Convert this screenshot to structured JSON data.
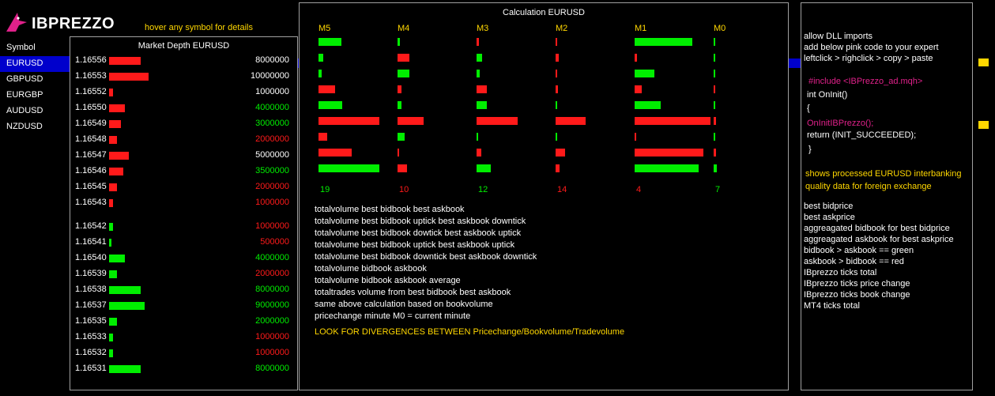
{
  "brand": {
    "name": "IBPREZZO",
    "accent": "#e0218a"
  },
  "hover_hint": "hover any symbol for details",
  "symbols": {
    "header": "Symbol",
    "items": [
      "EURUSD",
      "GBPUSD",
      "EURGBP",
      "AUDUSD",
      "NZDUSD"
    ],
    "selected": "EURUSD"
  },
  "colors": {
    "green": "#00ee00",
    "red": "#ff1a1a",
    "yellow": "#ffd700",
    "pink": "#e0218a",
    "selection": "#0000cc"
  },
  "market_depth": {
    "title": "Market Depth EURUSD",
    "rows": [
      {
        "price": "1.16556",
        "volume": "8000000",
        "color": "white",
        "bar": "red"
      },
      {
        "price": "1.16553",
        "volume": "10000000",
        "color": "white",
        "bar": "red"
      },
      {
        "price": "1.16552",
        "volume": "1000000",
        "color": "white",
        "bar": "red"
      },
      {
        "price": "1.16550",
        "volume": "4000000",
        "color": "green",
        "bar": "red"
      },
      {
        "price": "1.16549",
        "volume": "3000000",
        "color": "green",
        "bar": "red"
      },
      {
        "price": "1.16548",
        "volume": "2000000",
        "color": "red",
        "bar": "red"
      },
      {
        "price": "1.16547",
        "volume": "5000000",
        "color": "white",
        "bar": "red"
      },
      {
        "price": "1.16546",
        "volume": "3500000",
        "color": "green",
        "bar": "red"
      },
      {
        "price": "1.16545",
        "volume": "2000000",
        "color": "red",
        "bar": "red"
      },
      {
        "price": "1.16543",
        "volume": "1000000",
        "color": "red",
        "bar": "red"
      },
      {
        "price": "1.16542",
        "volume": "1000000",
        "color": "red",
        "bar": "green"
      },
      {
        "price": "1.16541",
        "volume": "500000",
        "color": "red",
        "bar": "green"
      },
      {
        "price": "1.16540",
        "volume": "4000000",
        "color": "green",
        "bar": "green"
      },
      {
        "price": "1.16539",
        "volume": "2000000",
        "color": "red",
        "bar": "green"
      },
      {
        "price": "1.16538",
        "volume": "8000000",
        "color": "green",
        "bar": "green"
      },
      {
        "price": "1.16537",
        "volume": "9000000",
        "color": "green",
        "bar": "green"
      },
      {
        "price": "1.16535",
        "volume": "2000000",
        "color": "green",
        "bar": "green"
      },
      {
        "price": "1.16533",
        "volume": "1000000",
        "color": "red",
        "bar": "green"
      },
      {
        "price": "1.16532",
        "volume": "1000000",
        "color": "red",
        "bar": "green"
      },
      {
        "price": "1.16531",
        "volume": "8000000",
        "color": "green",
        "bar": "green"
      }
    ]
  },
  "calculation": {
    "title": "Calculation EURUSD",
    "columns": [
      {
        "label": "M5",
        "count": "19",
        "count_color": "green",
        "bars": [
          {
            "c": "green",
            "v": 0.38
          },
          {
            "c": "green",
            "v": 0.08
          },
          {
            "c": "green",
            "v": 0.05
          },
          {
            "c": "red",
            "v": 0.27
          },
          {
            "c": "green",
            "v": 0.39
          },
          {
            "c": "red",
            "v": 1.0
          },
          {
            "c": "red",
            "v": 0.14
          },
          {
            "c": "red",
            "v": 0.55
          },
          {
            "c": "green",
            "v": 1.0
          }
        ]
      },
      {
        "label": "M4",
        "count": "10",
        "count_color": "red",
        "bars": [
          {
            "c": "green",
            "v": 0.04
          },
          {
            "c": "red",
            "v": 0.19
          },
          {
            "c": "green",
            "v": 0.2
          },
          {
            "c": "red",
            "v": 0.06
          },
          {
            "c": "green",
            "v": 0.07
          },
          {
            "c": "red",
            "v": 0.43
          },
          {
            "c": "green",
            "v": 0.12
          },
          {
            "c": "red",
            "v": 0.03
          },
          {
            "c": "red",
            "v": 0.16
          }
        ]
      },
      {
        "label": "M3",
        "count": "12",
        "count_color": "green",
        "bars": [
          {
            "c": "red",
            "v": 0.04
          },
          {
            "c": "green",
            "v": 0.09
          },
          {
            "c": "green",
            "v": 0.05
          },
          {
            "c": "red",
            "v": 0.17
          },
          {
            "c": "green",
            "v": 0.17
          },
          {
            "c": "red",
            "v": 0.67
          },
          {
            "c": "green",
            "v": 0.02
          },
          {
            "c": "red",
            "v": 0.08
          },
          {
            "c": "green",
            "v": 0.23
          }
        ]
      },
      {
        "label": "M2",
        "count": "14",
        "count_color": "red",
        "bars": [
          {
            "c": "red",
            "v": 0.03
          },
          {
            "c": "red",
            "v": 0.05
          },
          {
            "c": "red",
            "v": 0.02
          },
          {
            "c": "red",
            "v": 0.04
          },
          {
            "c": "green",
            "v": 0.03
          },
          {
            "c": "red",
            "v": 0.49
          },
          {
            "c": "green",
            "v": 0.03
          },
          {
            "c": "red",
            "v": 0.15
          },
          {
            "c": "red",
            "v": 0.06
          }
        ]
      },
      {
        "label": "M1",
        "count": "4",
        "count_color": "red",
        "bars": [
          {
            "c": "green",
            "v": 0.74
          },
          {
            "c": "red",
            "v": 0.03
          },
          {
            "c": "green",
            "v": 0.26
          },
          {
            "c": "red",
            "v": 0.09
          },
          {
            "c": "green",
            "v": 0.34
          },
          {
            "c": "red",
            "v": 0.98
          },
          {
            "c": "red",
            "v": 0.02
          },
          {
            "c": "red",
            "v": 0.89
          },
          {
            "c": "green",
            "v": 0.83
          }
        ]
      },
      {
        "label": "M0",
        "count": "7",
        "count_color": "green",
        "bars": [
          {
            "c": "green",
            "v": 0.02
          },
          {
            "c": "green",
            "v": 0.02
          },
          {
            "c": "green",
            "v": 0.02
          },
          {
            "c": "red",
            "v": 0.04
          },
          {
            "c": "green",
            "v": 0.06
          },
          {
            "c": "red",
            "v": 0.13
          },
          {
            "c": "green",
            "v": 0.07
          },
          {
            "c": "red",
            "v": 0.14
          },
          {
            "c": "green",
            "v": 0.2
          }
        ]
      }
    ],
    "descriptions": [
      "totalvolume best bidbook best askbook",
      "totalvolume best bidbook uptick best askbook downtick",
      "totalvolume best bidbook dowtick best askbook uptick",
      "totalvolume best bidbook uptick best askbook uptick",
      "totalvolume best bidbook downtick best askbook downtick",
      "totalvolume bidbook askbook",
      "totalvolume bidbook askbook average",
      "totaltrades volume from best bidbook best askbook",
      "same above calculation based on bookvolume",
      "pricechange minute M0 = current minute"
    ],
    "look_note": "LOOK FOR DIVERGENCES BETWEEN Pricechange/Bookvolume/Tradevolume"
  },
  "info": {
    "lines": [
      {
        "text": "allow DLL imports",
        "color": "white"
      },
      {
        "text": "add below pink code to your expert",
        "color": "white"
      },
      {
        "text": "leftclick > righclick > copy > paste",
        "color": "white"
      },
      {
        "text": "#include <IBPrezzo_ad.mqh>",
        "color": "pink"
      },
      {
        "text": "int OnInit()",
        "color": "white"
      },
      {
        "text": "{",
        "color": "white"
      },
      {
        "text": "OnInitIBPrezzo();",
        "color": "pink"
      },
      {
        "text": "return (INIT_SUCCEEDED);",
        "color": "white"
      },
      {
        "text": "}",
        "color": "white"
      },
      {
        "text": "shows processed  EURUSD  interbanking",
        "color": "yellow"
      },
      {
        "text": "quality data for foreign exchange",
        "color": "yellow"
      },
      {
        "text": "best bidprice",
        "color": "white"
      },
      {
        "text": "best askprice",
        "color": "white"
      },
      {
        "text": "aggreagated bidbook for best bidprice",
        "color": "white"
      },
      {
        "text": "aggreagated askbook for best askprice",
        "color": "white"
      },
      {
        "text": "bidbook > askbook == green",
        "color": "white"
      },
      {
        "text": "askbook > bidbook == red",
        "color": "white"
      },
      {
        "text": "IBprezzo ticks total",
        "color": "white"
      },
      {
        "text": "IBprezzo ticks price change",
        "color": "white"
      },
      {
        "text": "IBprezzo ticks book change",
        "color": "white"
      },
      {
        "text": "MT4 ticks total",
        "color": "white"
      }
    ]
  }
}
